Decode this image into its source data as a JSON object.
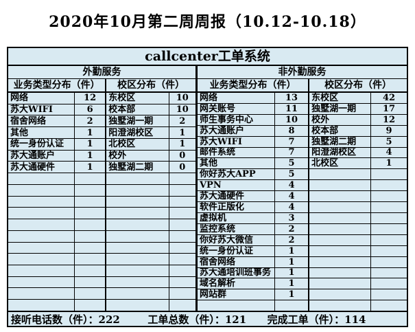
{
  "page_title": "2020年10月第二周周报（10.12-10.18）",
  "colors": {
    "cell_background": "#d9eaf2",
    "border": "#000000",
    "text": "#000000",
    "page_background": "#ffffff"
  },
  "sheet": {
    "title": "callcenter工单系统",
    "sections": [
      {
        "name": "外勤服务",
        "rows_total": 19,
        "business": {
          "header": "业务类型分布（件）",
          "items": [
            [
              "网络",
              "12"
            ],
            [
              "苏大WIFI",
              "6"
            ],
            [
              "宿舍网络",
              "2"
            ],
            [
              "其他",
              "1"
            ],
            [
              "统一身份认证",
              "1"
            ],
            [
              "苏大通账户",
              "1"
            ],
            [
              "苏大通硬件",
              "1"
            ]
          ]
        },
        "campus": {
          "header": "校区分布（件）",
          "items": [
            [
              "东校区",
              "10"
            ],
            [
              "校本部",
              "10"
            ],
            [
              "独墅湖一期",
              "2"
            ],
            [
              "阳澄湖校区",
              "1"
            ],
            [
              "北校区",
              "1"
            ],
            [
              "校外",
              "0"
            ],
            [
              "独墅湖二期",
              "0"
            ]
          ]
        }
      },
      {
        "name": "非外勤服务",
        "rows_total": 20,
        "business": {
          "header": "业务类型分布（件）",
          "items": [
            [
              "网络",
              "13"
            ],
            [
              "网关账号",
              "11"
            ],
            [
              "师生事务中心",
              "10"
            ],
            [
              "苏大通账户",
              "8"
            ],
            [
              "苏大WIFI",
              "7"
            ],
            [
              "邮件系统",
              "7"
            ],
            [
              "其他",
              "5"
            ],
            [
              "你好苏大APP",
              "5"
            ],
            [
              "VPN",
              "4"
            ],
            [
              "苏大通硬件",
              "4"
            ],
            [
              "软件正版化",
              "4"
            ],
            [
              "虚拟机",
              "3"
            ],
            [
              "监控系统",
              "2"
            ],
            [
              "你好苏大微信",
              "2"
            ],
            [
              "统一身份认证",
              "1"
            ],
            [
              "宿舍网络",
              "1"
            ],
            [
              "苏大通培训班事务",
              "1"
            ],
            [
              "域名解析",
              "1"
            ],
            [
              "网站群",
              "1"
            ]
          ]
        },
        "campus": {
          "header": "校区分布（件）",
          "items": [
            [
              "东校区",
              "42"
            ],
            [
              "独墅湖一期",
              "17"
            ],
            [
              "校外",
              "12"
            ],
            [
              "校本部",
              "9"
            ],
            [
              "独墅湖二期",
              "5"
            ],
            [
              "阳澄湖校区",
              "4"
            ],
            [
              "北校区",
              "1"
            ]
          ]
        }
      }
    ],
    "footer": [
      {
        "label": "接听电话数（件）：",
        "value": "222"
      },
      {
        "label": "工单总数（件）：",
        "value": "121"
      },
      {
        "label": "完成工单（件）：",
        "value": "114"
      }
    ]
  }
}
